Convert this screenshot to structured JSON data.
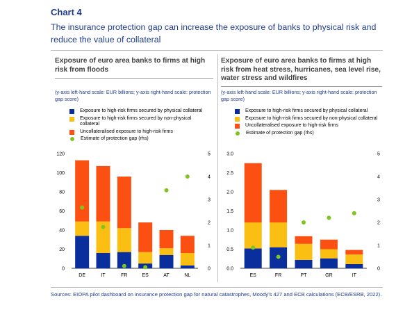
{
  "header": {
    "chart_number": "Chart 4",
    "title": "The insurance protection gap can increase the exposure of banks to physical risk and reduce the value of collateral"
  },
  "colors": {
    "physical": "#0a2f9c",
    "non_physical": "#fbbf14",
    "uncollateralised": "#fc4f12",
    "protection_gap": "#7ec51f"
  },
  "sources": {
    "prefix": "Sources: ",
    "link1": "EIOPA pilot dashboard on insurance protection gap for natural catastrophes",
    "rest": ", Moody’s 427 and ECB calculations (ECB/ESRB, 2022)."
  },
  "chart_data": [
    {
      "type": "bar",
      "title": "Exposure of euro area banks to firms at high risk from floods",
      "note": "(y-axis left-hand scale: EUR billions; y-axis right-hand scale: protection gap score)",
      "categories": [
        "DE",
        "IT",
        "FR",
        "ES",
        "AT",
        "NL"
      ],
      "stacked": true,
      "series": [
        {
          "name": "Exposure to high-risk firms secured by physical collateral",
          "color_key": "physical",
          "values": [
            34,
            16,
            17,
            5,
            14,
            3
          ]
        },
        {
          "name": "Exposure to high-risk firms secured by non-physical collateral",
          "color_key": "non_physical",
          "values": [
            15,
            33,
            25,
            12,
            7,
            13
          ]
        },
        {
          "name": "Uncollateralised exposure to high-risk firms",
          "color_key": "uncollateralised",
          "values": [
            64,
            58,
            54,
            31,
            19,
            18
          ]
        },
        {
          "name": "Estimate of protection gap (rhs)",
          "type": "scatter",
          "axis": "right",
          "color_key": "protection_gap",
          "values": [
            2.65,
            1.8,
            0.1,
            0.05,
            3.4,
            4.0
          ]
        }
      ],
      "ylim": [
        0,
        120
      ],
      "yticks": [
        0,
        20,
        40,
        60,
        80,
        100,
        120
      ],
      "y2lim": [
        0,
        5
      ],
      "y2ticks": [
        0,
        1,
        2,
        3,
        4,
        5
      ],
      "legend": "top-left"
    },
    {
      "type": "bar",
      "title": "Exposure of euro area banks to firms at high risk from heat stress, hurricanes, sea level rise, water stress and wildfires",
      "note": "(y-axis left-hand scale: EUR billions; y-axis right-hand scale: protection gap score)",
      "categories": [
        "ES",
        "FR",
        "PT",
        "GR",
        "IT"
      ],
      "stacked": true,
      "series": [
        {
          "name": "Exposure to high-risk firms secured by physical collateral",
          "color_key": "physical",
          "values": [
            0.52,
            0.55,
            0.22,
            0.26,
            0.11
          ]
        },
        {
          "name": "Exposure to high-risk firms secured by non-physical collateral",
          "color_key": "non_physical",
          "values": [
            0.68,
            0.65,
            0.42,
            0.24,
            0.25
          ]
        },
        {
          "name": "Uncollateralised exposure to high-risk firms",
          "color_key": "uncollateralised",
          "values": [
            1.55,
            0.85,
            0.2,
            0.25,
            0.12
          ]
        },
        {
          "name": "Estimate of protection gap (rhs)",
          "type": "scatter",
          "axis": "right",
          "color_key": "protection_gap",
          "values": [
            0.9,
            0.5,
            2.0,
            2.2,
            2.4
          ]
        }
      ],
      "ylim": [
        0,
        3
      ],
      "yticks": [
        "0.0",
        "0.5",
        "1.0",
        "1.5",
        "2.0",
        "2.5",
        "3.0"
      ],
      "y2lim": [
        0,
        5
      ],
      "y2ticks": [
        0,
        1,
        2,
        3,
        4,
        5
      ],
      "legend": "top-left"
    }
  ]
}
